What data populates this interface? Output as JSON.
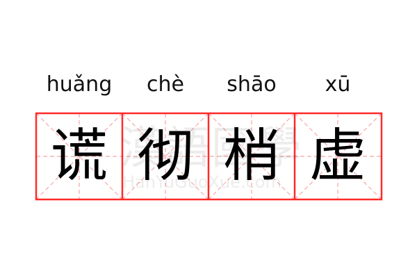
{
  "words": [
    {
      "pinyin": "huǎng",
      "hanzi": "谎"
    },
    {
      "pinyin": "chè",
      "hanzi": "彻"
    },
    {
      "pinyin": "shāo",
      "hanzi": "梢"
    },
    {
      "pinyin": "xū",
      "hanzi": "虚"
    }
  ],
  "watermark": {
    "chinese": "漢語國學",
    "latin": "HanYuGuoXue.com"
  },
  "colors": {
    "border": "#ff2a2a",
    "guide": "#f8a5a5",
    "text": "#000000"
  }
}
